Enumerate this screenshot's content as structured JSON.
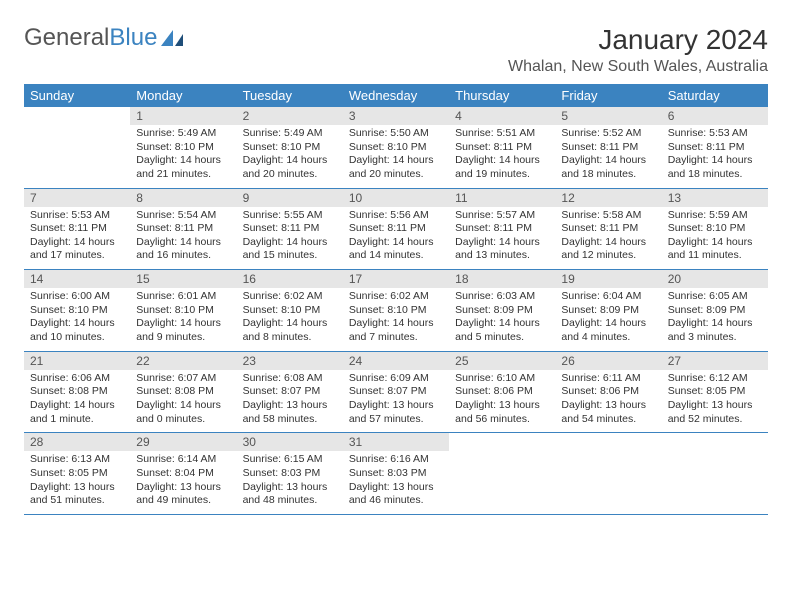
{
  "colors": {
    "header_bg": "#3b83c0",
    "header_text": "#ffffff",
    "daynum_bg": "#e6e6e6",
    "daynum_text": "#555555",
    "body_text": "#333333",
    "border": "#3b83c0",
    "page_bg": "#ffffff",
    "logo_gray": "#555555",
    "logo_blue": "#3b83c0"
  },
  "typography": {
    "font_family": "Arial, Helvetica, sans-serif",
    "title_size_pt": 21,
    "location_size_pt": 12,
    "header_size_pt": 10,
    "daynum_size_pt": 9,
    "cell_size_pt": 8
  },
  "logo": {
    "part1": "General",
    "part2": "Blue"
  },
  "title": "January 2024",
  "location": "Whalan, New South Wales, Australia",
  "day_headers": [
    "Sunday",
    "Monday",
    "Tuesday",
    "Wednesday",
    "Thursday",
    "Friday",
    "Saturday"
  ],
  "weeks": [
    [
      {
        "num": "",
        "sunrise": "",
        "sunset": "",
        "daylight": ""
      },
      {
        "num": "1",
        "sunrise": "Sunrise: 5:49 AM",
        "sunset": "Sunset: 8:10 PM",
        "daylight": "Daylight: 14 hours and 21 minutes."
      },
      {
        "num": "2",
        "sunrise": "Sunrise: 5:49 AM",
        "sunset": "Sunset: 8:10 PM",
        "daylight": "Daylight: 14 hours and 20 minutes."
      },
      {
        "num": "3",
        "sunrise": "Sunrise: 5:50 AM",
        "sunset": "Sunset: 8:10 PM",
        "daylight": "Daylight: 14 hours and 20 minutes."
      },
      {
        "num": "4",
        "sunrise": "Sunrise: 5:51 AM",
        "sunset": "Sunset: 8:11 PM",
        "daylight": "Daylight: 14 hours and 19 minutes."
      },
      {
        "num": "5",
        "sunrise": "Sunrise: 5:52 AM",
        "sunset": "Sunset: 8:11 PM",
        "daylight": "Daylight: 14 hours and 18 minutes."
      },
      {
        "num": "6",
        "sunrise": "Sunrise: 5:53 AM",
        "sunset": "Sunset: 8:11 PM",
        "daylight": "Daylight: 14 hours and 18 minutes."
      }
    ],
    [
      {
        "num": "7",
        "sunrise": "Sunrise: 5:53 AM",
        "sunset": "Sunset: 8:11 PM",
        "daylight": "Daylight: 14 hours and 17 minutes."
      },
      {
        "num": "8",
        "sunrise": "Sunrise: 5:54 AM",
        "sunset": "Sunset: 8:11 PM",
        "daylight": "Daylight: 14 hours and 16 minutes."
      },
      {
        "num": "9",
        "sunrise": "Sunrise: 5:55 AM",
        "sunset": "Sunset: 8:11 PM",
        "daylight": "Daylight: 14 hours and 15 minutes."
      },
      {
        "num": "10",
        "sunrise": "Sunrise: 5:56 AM",
        "sunset": "Sunset: 8:11 PM",
        "daylight": "Daylight: 14 hours and 14 minutes."
      },
      {
        "num": "11",
        "sunrise": "Sunrise: 5:57 AM",
        "sunset": "Sunset: 8:11 PM",
        "daylight": "Daylight: 14 hours and 13 minutes."
      },
      {
        "num": "12",
        "sunrise": "Sunrise: 5:58 AM",
        "sunset": "Sunset: 8:11 PM",
        "daylight": "Daylight: 14 hours and 12 minutes."
      },
      {
        "num": "13",
        "sunrise": "Sunrise: 5:59 AM",
        "sunset": "Sunset: 8:10 PM",
        "daylight": "Daylight: 14 hours and 11 minutes."
      }
    ],
    [
      {
        "num": "14",
        "sunrise": "Sunrise: 6:00 AM",
        "sunset": "Sunset: 8:10 PM",
        "daylight": "Daylight: 14 hours and 10 minutes."
      },
      {
        "num": "15",
        "sunrise": "Sunrise: 6:01 AM",
        "sunset": "Sunset: 8:10 PM",
        "daylight": "Daylight: 14 hours and 9 minutes."
      },
      {
        "num": "16",
        "sunrise": "Sunrise: 6:02 AM",
        "sunset": "Sunset: 8:10 PM",
        "daylight": "Daylight: 14 hours and 8 minutes."
      },
      {
        "num": "17",
        "sunrise": "Sunrise: 6:02 AM",
        "sunset": "Sunset: 8:10 PM",
        "daylight": "Daylight: 14 hours and 7 minutes."
      },
      {
        "num": "18",
        "sunrise": "Sunrise: 6:03 AM",
        "sunset": "Sunset: 8:09 PM",
        "daylight": "Daylight: 14 hours and 5 minutes."
      },
      {
        "num": "19",
        "sunrise": "Sunrise: 6:04 AM",
        "sunset": "Sunset: 8:09 PM",
        "daylight": "Daylight: 14 hours and 4 minutes."
      },
      {
        "num": "20",
        "sunrise": "Sunrise: 6:05 AM",
        "sunset": "Sunset: 8:09 PM",
        "daylight": "Daylight: 14 hours and 3 minutes."
      }
    ],
    [
      {
        "num": "21",
        "sunrise": "Sunrise: 6:06 AM",
        "sunset": "Sunset: 8:08 PM",
        "daylight": "Daylight: 14 hours and 1 minute."
      },
      {
        "num": "22",
        "sunrise": "Sunrise: 6:07 AM",
        "sunset": "Sunset: 8:08 PM",
        "daylight": "Daylight: 14 hours and 0 minutes."
      },
      {
        "num": "23",
        "sunrise": "Sunrise: 6:08 AM",
        "sunset": "Sunset: 8:07 PM",
        "daylight": "Daylight: 13 hours and 58 minutes."
      },
      {
        "num": "24",
        "sunrise": "Sunrise: 6:09 AM",
        "sunset": "Sunset: 8:07 PM",
        "daylight": "Daylight: 13 hours and 57 minutes."
      },
      {
        "num": "25",
        "sunrise": "Sunrise: 6:10 AM",
        "sunset": "Sunset: 8:06 PM",
        "daylight": "Daylight: 13 hours and 56 minutes."
      },
      {
        "num": "26",
        "sunrise": "Sunrise: 6:11 AM",
        "sunset": "Sunset: 8:06 PM",
        "daylight": "Daylight: 13 hours and 54 minutes."
      },
      {
        "num": "27",
        "sunrise": "Sunrise: 6:12 AM",
        "sunset": "Sunset: 8:05 PM",
        "daylight": "Daylight: 13 hours and 52 minutes."
      }
    ],
    [
      {
        "num": "28",
        "sunrise": "Sunrise: 6:13 AM",
        "sunset": "Sunset: 8:05 PM",
        "daylight": "Daylight: 13 hours and 51 minutes."
      },
      {
        "num": "29",
        "sunrise": "Sunrise: 6:14 AM",
        "sunset": "Sunset: 8:04 PM",
        "daylight": "Daylight: 13 hours and 49 minutes."
      },
      {
        "num": "30",
        "sunrise": "Sunrise: 6:15 AM",
        "sunset": "Sunset: 8:03 PM",
        "daylight": "Daylight: 13 hours and 48 minutes."
      },
      {
        "num": "31",
        "sunrise": "Sunrise: 6:16 AM",
        "sunset": "Sunset: 8:03 PM",
        "daylight": "Daylight: 13 hours and 46 minutes."
      },
      {
        "num": "",
        "sunrise": "",
        "sunset": "",
        "daylight": ""
      },
      {
        "num": "",
        "sunrise": "",
        "sunset": "",
        "daylight": ""
      },
      {
        "num": "",
        "sunrise": "",
        "sunset": "",
        "daylight": ""
      }
    ]
  ]
}
